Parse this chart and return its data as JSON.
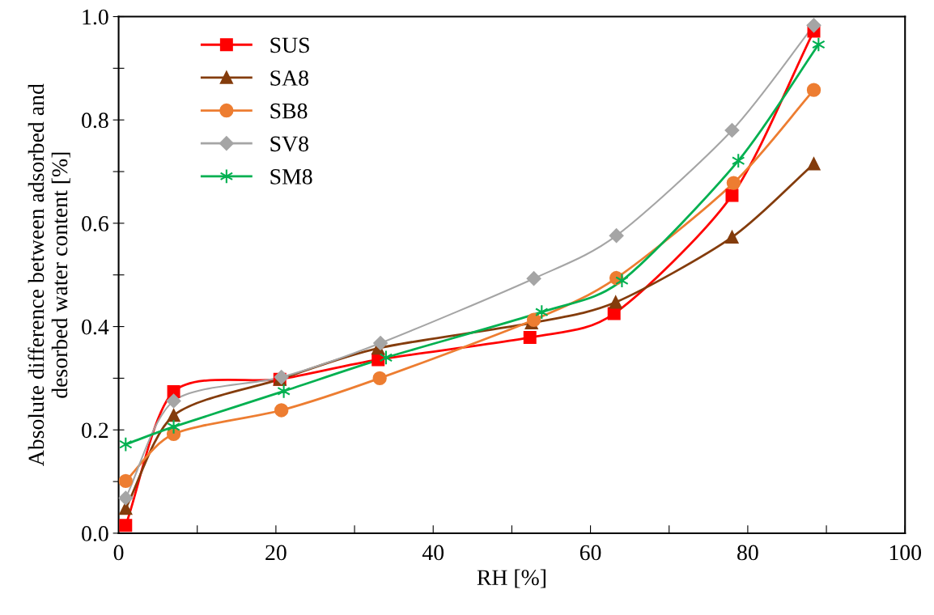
{
  "chart_data": {
    "type": "line",
    "xlabel": "RH [%]",
    "ylabel": "Absolute difference between adsorbed and\ndesorbed water content [%]",
    "xlim": [
      0,
      100
    ],
    "ylim": [
      0,
      1.0
    ],
    "xticks": [
      0,
      {
        "value": 10,
        "label": null
      },
      20,
      {
        "value": 30,
        "label": null
      },
      40,
      {
        "value": 50,
        "label": null
      },
      60,
      {
        "value": 70,
        "label": null
      },
      80,
      {
        "value": 90,
        "label": null
      },
      100
    ],
    "yticks": [
      {
        "value": 0,
        "label": "0.0"
      },
      {
        "value": 0.1,
        "label": null
      },
      0.2,
      {
        "value": 0.3,
        "label": null
      },
      0.4,
      {
        "value": 0.5,
        "label": null
      },
      0.6,
      {
        "value": 0.7,
        "label": null
      },
      0.8,
      {
        "value": 0.9,
        "label": null
      },
      {
        "value": 1.0,
        "label": "1.0"
      }
    ],
    "grid": false,
    "legend": "top left",
    "line_style": "solid",
    "series": [
      {
        "name": "SUS",
        "color": "#ff0000",
        "marker": "square",
        "x": [
          0.9,
          7,
          20.5,
          33,
          52.3,
          63,
          78,
          88.4
        ],
        "values": [
          0.015,
          0.274,
          0.298,
          0.336,
          0.379,
          0.425,
          0.654,
          0.972
        ]
      },
      {
        "name": "SA8",
        "color": "#843c0c",
        "marker": "triangle",
        "x": [
          0.9,
          7,
          20.5,
          33,
          52.5,
          63.2,
          78,
          88.4
        ],
        "values": [
          0.048,
          0.228,
          0.298,
          0.358,
          0.407,
          0.447,
          0.573,
          0.715
        ]
      },
      {
        "name": "SB8",
        "color": "#ed7d31",
        "marker": "circle",
        "x": [
          0.9,
          7,
          20.7,
          33.2,
          52.8,
          63.3,
          78.2,
          88.4
        ],
        "values": [
          0.101,
          0.192,
          0.238,
          0.3,
          0.413,
          0.494,
          0.678,
          0.858
        ]
      },
      {
        "name": "SV8",
        "color": "#a5a5a5",
        "marker": "diamond",
        "x": [
          0.9,
          7,
          20.7,
          33.3,
          52.8,
          63.3,
          78,
          88.4
        ],
        "values": [
          0.068,
          0.256,
          0.302,
          0.368,
          0.493,
          0.576,
          0.78,
          0.983
        ]
      },
      {
        "name": "SM8",
        "color": "#00b050",
        "marker": "cross",
        "x": [
          0.9,
          7,
          21,
          34,
          53.8,
          64,
          78.8,
          89
        ],
        "values": [
          0.172,
          0.206,
          0.275,
          0.34,
          0.428,
          0.489,
          0.721,
          0.946
        ]
      }
    ]
  }
}
